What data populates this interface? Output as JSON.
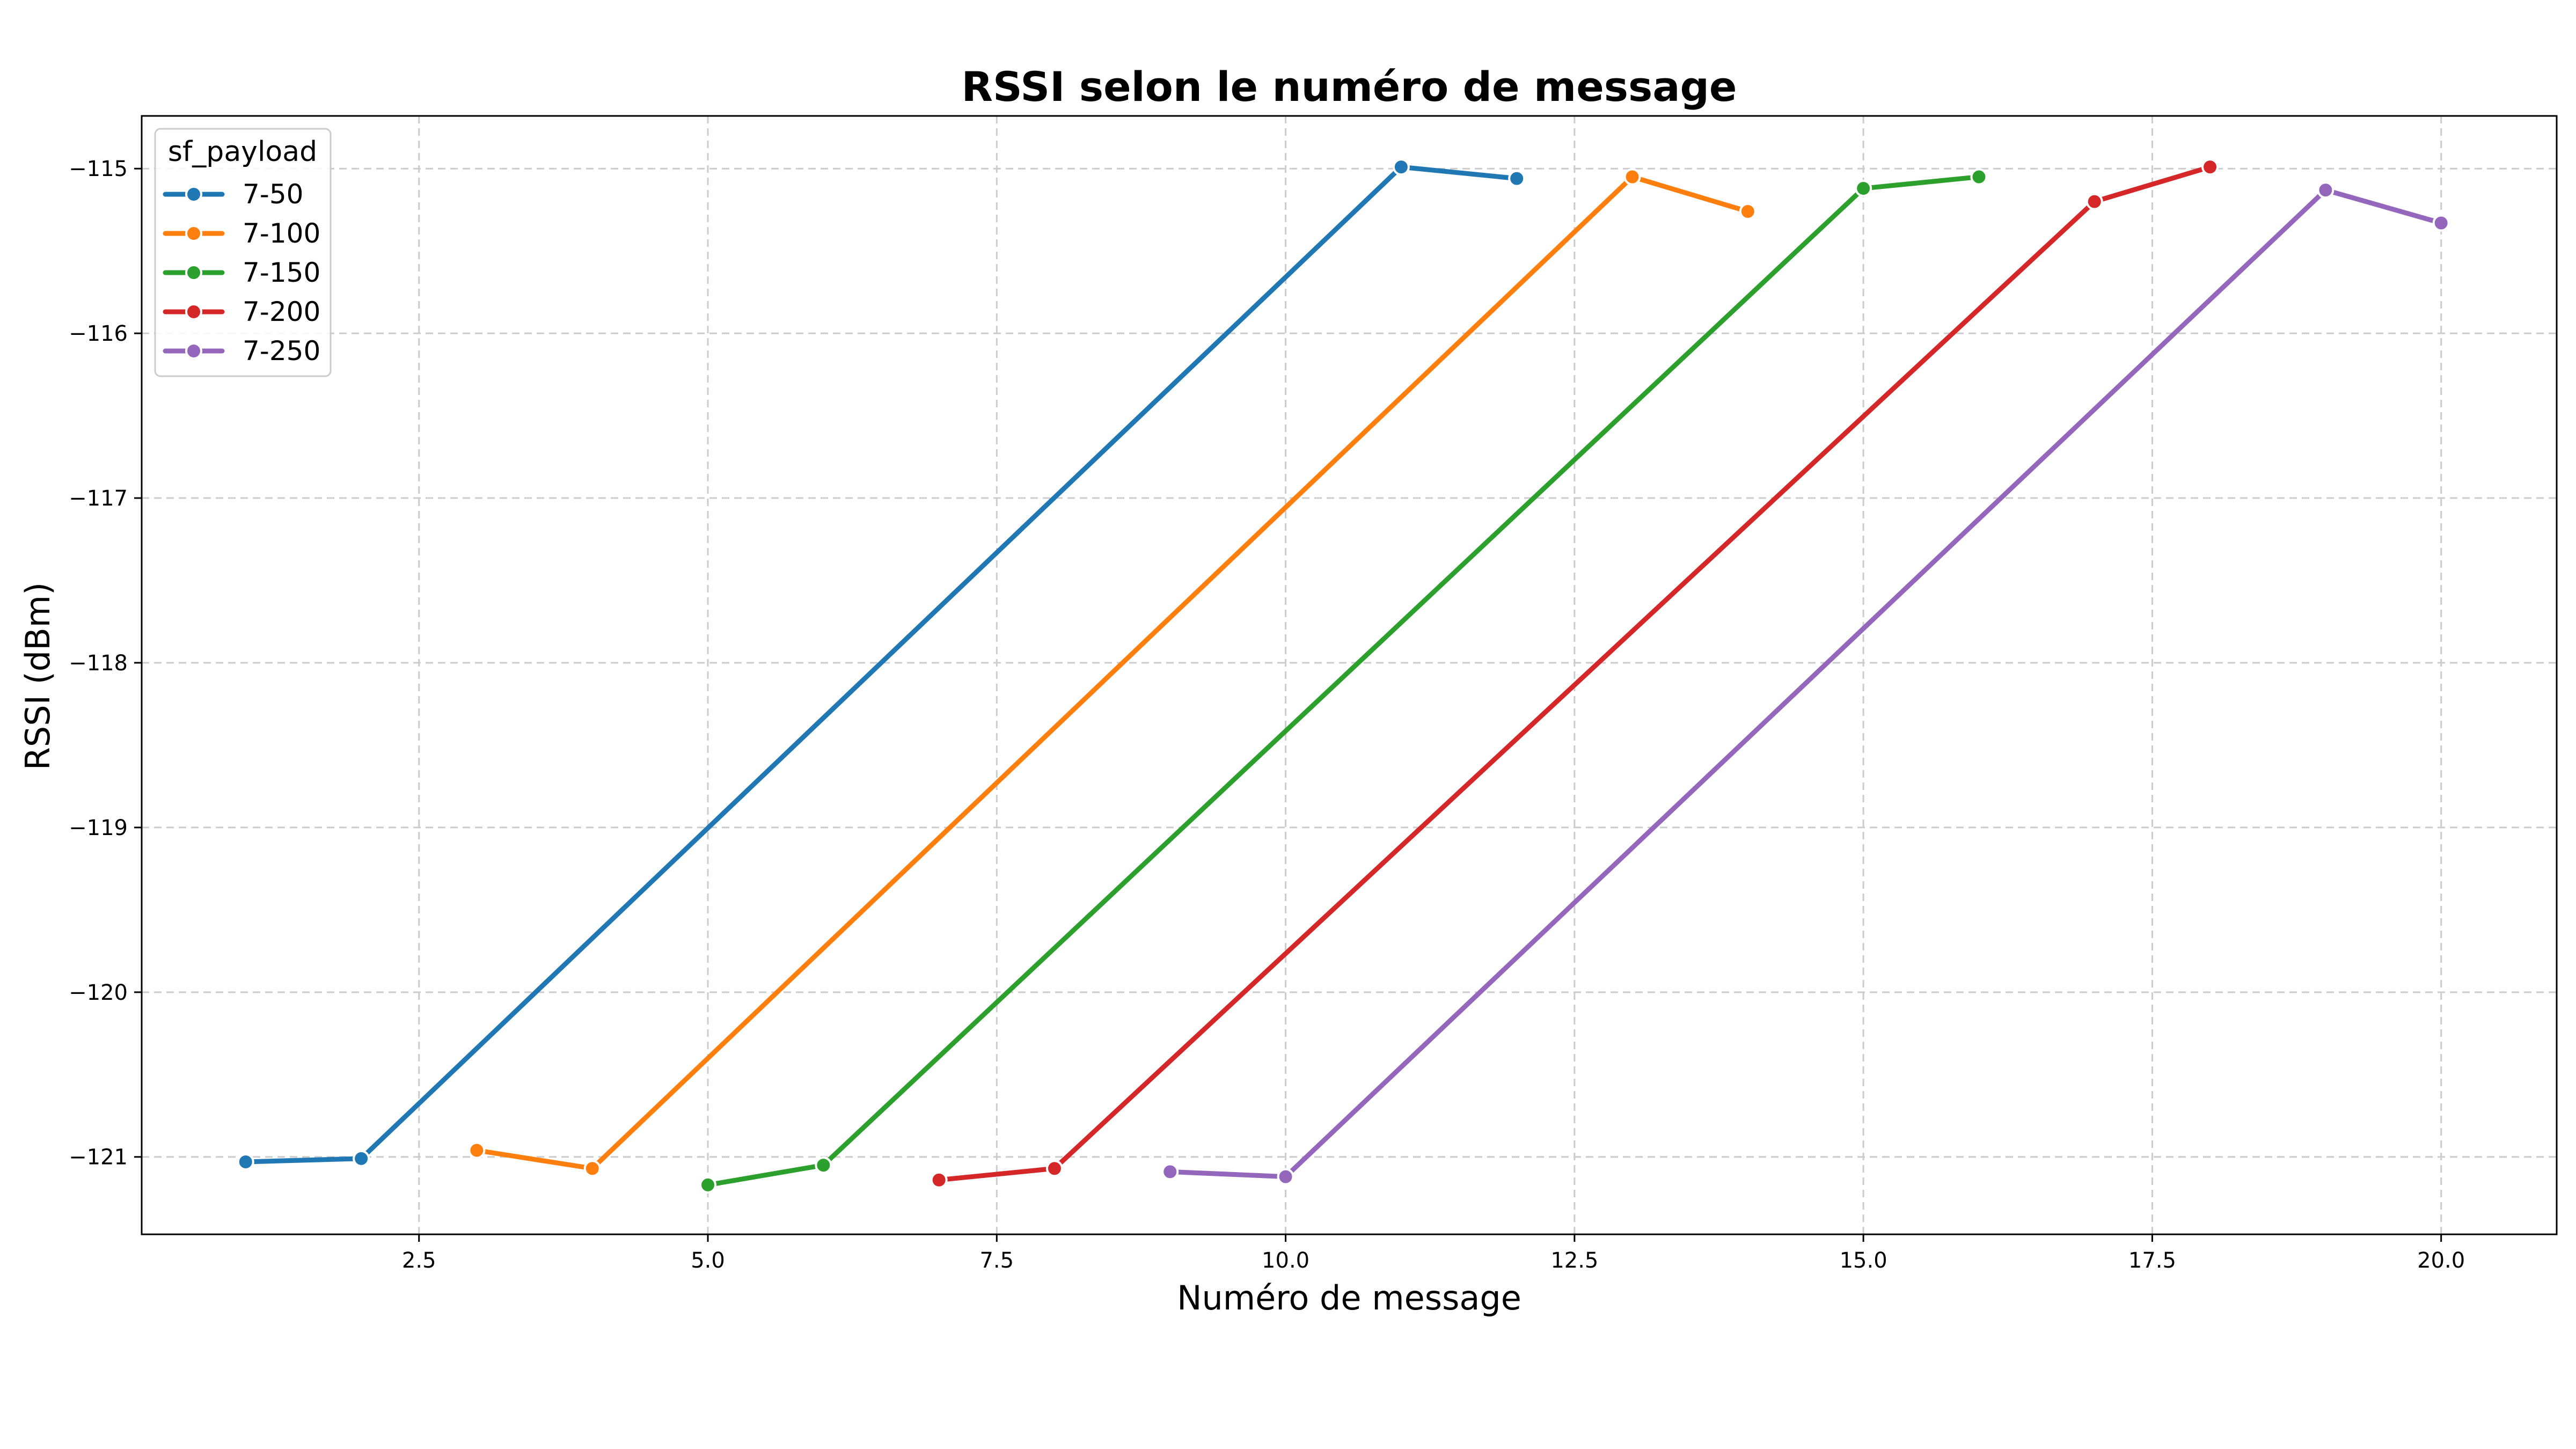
{
  "chart_data": {
    "type": "line",
    "title": "RSSI selon le numéro de message",
    "xlabel": "Numéro de message",
    "ylabel": "RSSI (dBm)",
    "xlim": [
      0.1,
      21.0
    ],
    "ylim": [
      -121.47,
      -114.68
    ],
    "xticks": [
      2.5,
      5.0,
      7.5,
      10.0,
      12.5,
      15.0,
      17.5,
      20.0
    ],
    "xtick_labels": [
      "2.5",
      "5.0",
      "7.5",
      "10.0",
      "12.5",
      "15.0",
      "17.5",
      "20.0"
    ],
    "yticks": [
      -115,
      -116,
      -117,
      -118,
      -119,
      -120,
      -121
    ],
    "ytick_labels": [
      "−115",
      "−116",
      "−117",
      "−118",
      "−119",
      "−120",
      "−121"
    ],
    "grid": true,
    "legend": {
      "title": "sf_payload",
      "placement": "top-left"
    },
    "series": [
      {
        "name": "7-50",
        "color": "#1f77b4",
        "points": [
          [
            1,
            -121.03
          ],
          [
            2,
            -121.01
          ],
          [
            11,
            -114.99
          ],
          [
            12,
            -115.06
          ]
        ]
      },
      {
        "name": "7-100",
        "color": "#ff7f0e",
        "points": [
          [
            3,
            -120.96
          ],
          [
            4,
            -121.07
          ],
          [
            13,
            -115.05
          ],
          [
            14,
            -115.26
          ]
        ]
      },
      {
        "name": "7-150",
        "color": "#2ca02c",
        "points": [
          [
            5,
            -121.17
          ],
          [
            6,
            -121.05
          ],
          [
            15,
            -115.12
          ],
          [
            16,
            -115.05
          ]
        ]
      },
      {
        "name": "7-200",
        "color": "#d62728",
        "points": [
          [
            7,
            -121.14
          ],
          [
            8,
            -121.07
          ],
          [
            17,
            -115.2
          ],
          [
            18,
            -114.99
          ]
        ]
      },
      {
        "name": "7-250",
        "color": "#9467bd",
        "points": [
          [
            9,
            -121.09
          ],
          [
            10,
            -121.12
          ],
          [
            19,
            -115.13
          ],
          [
            20,
            -115.33
          ]
        ]
      }
    ]
  }
}
